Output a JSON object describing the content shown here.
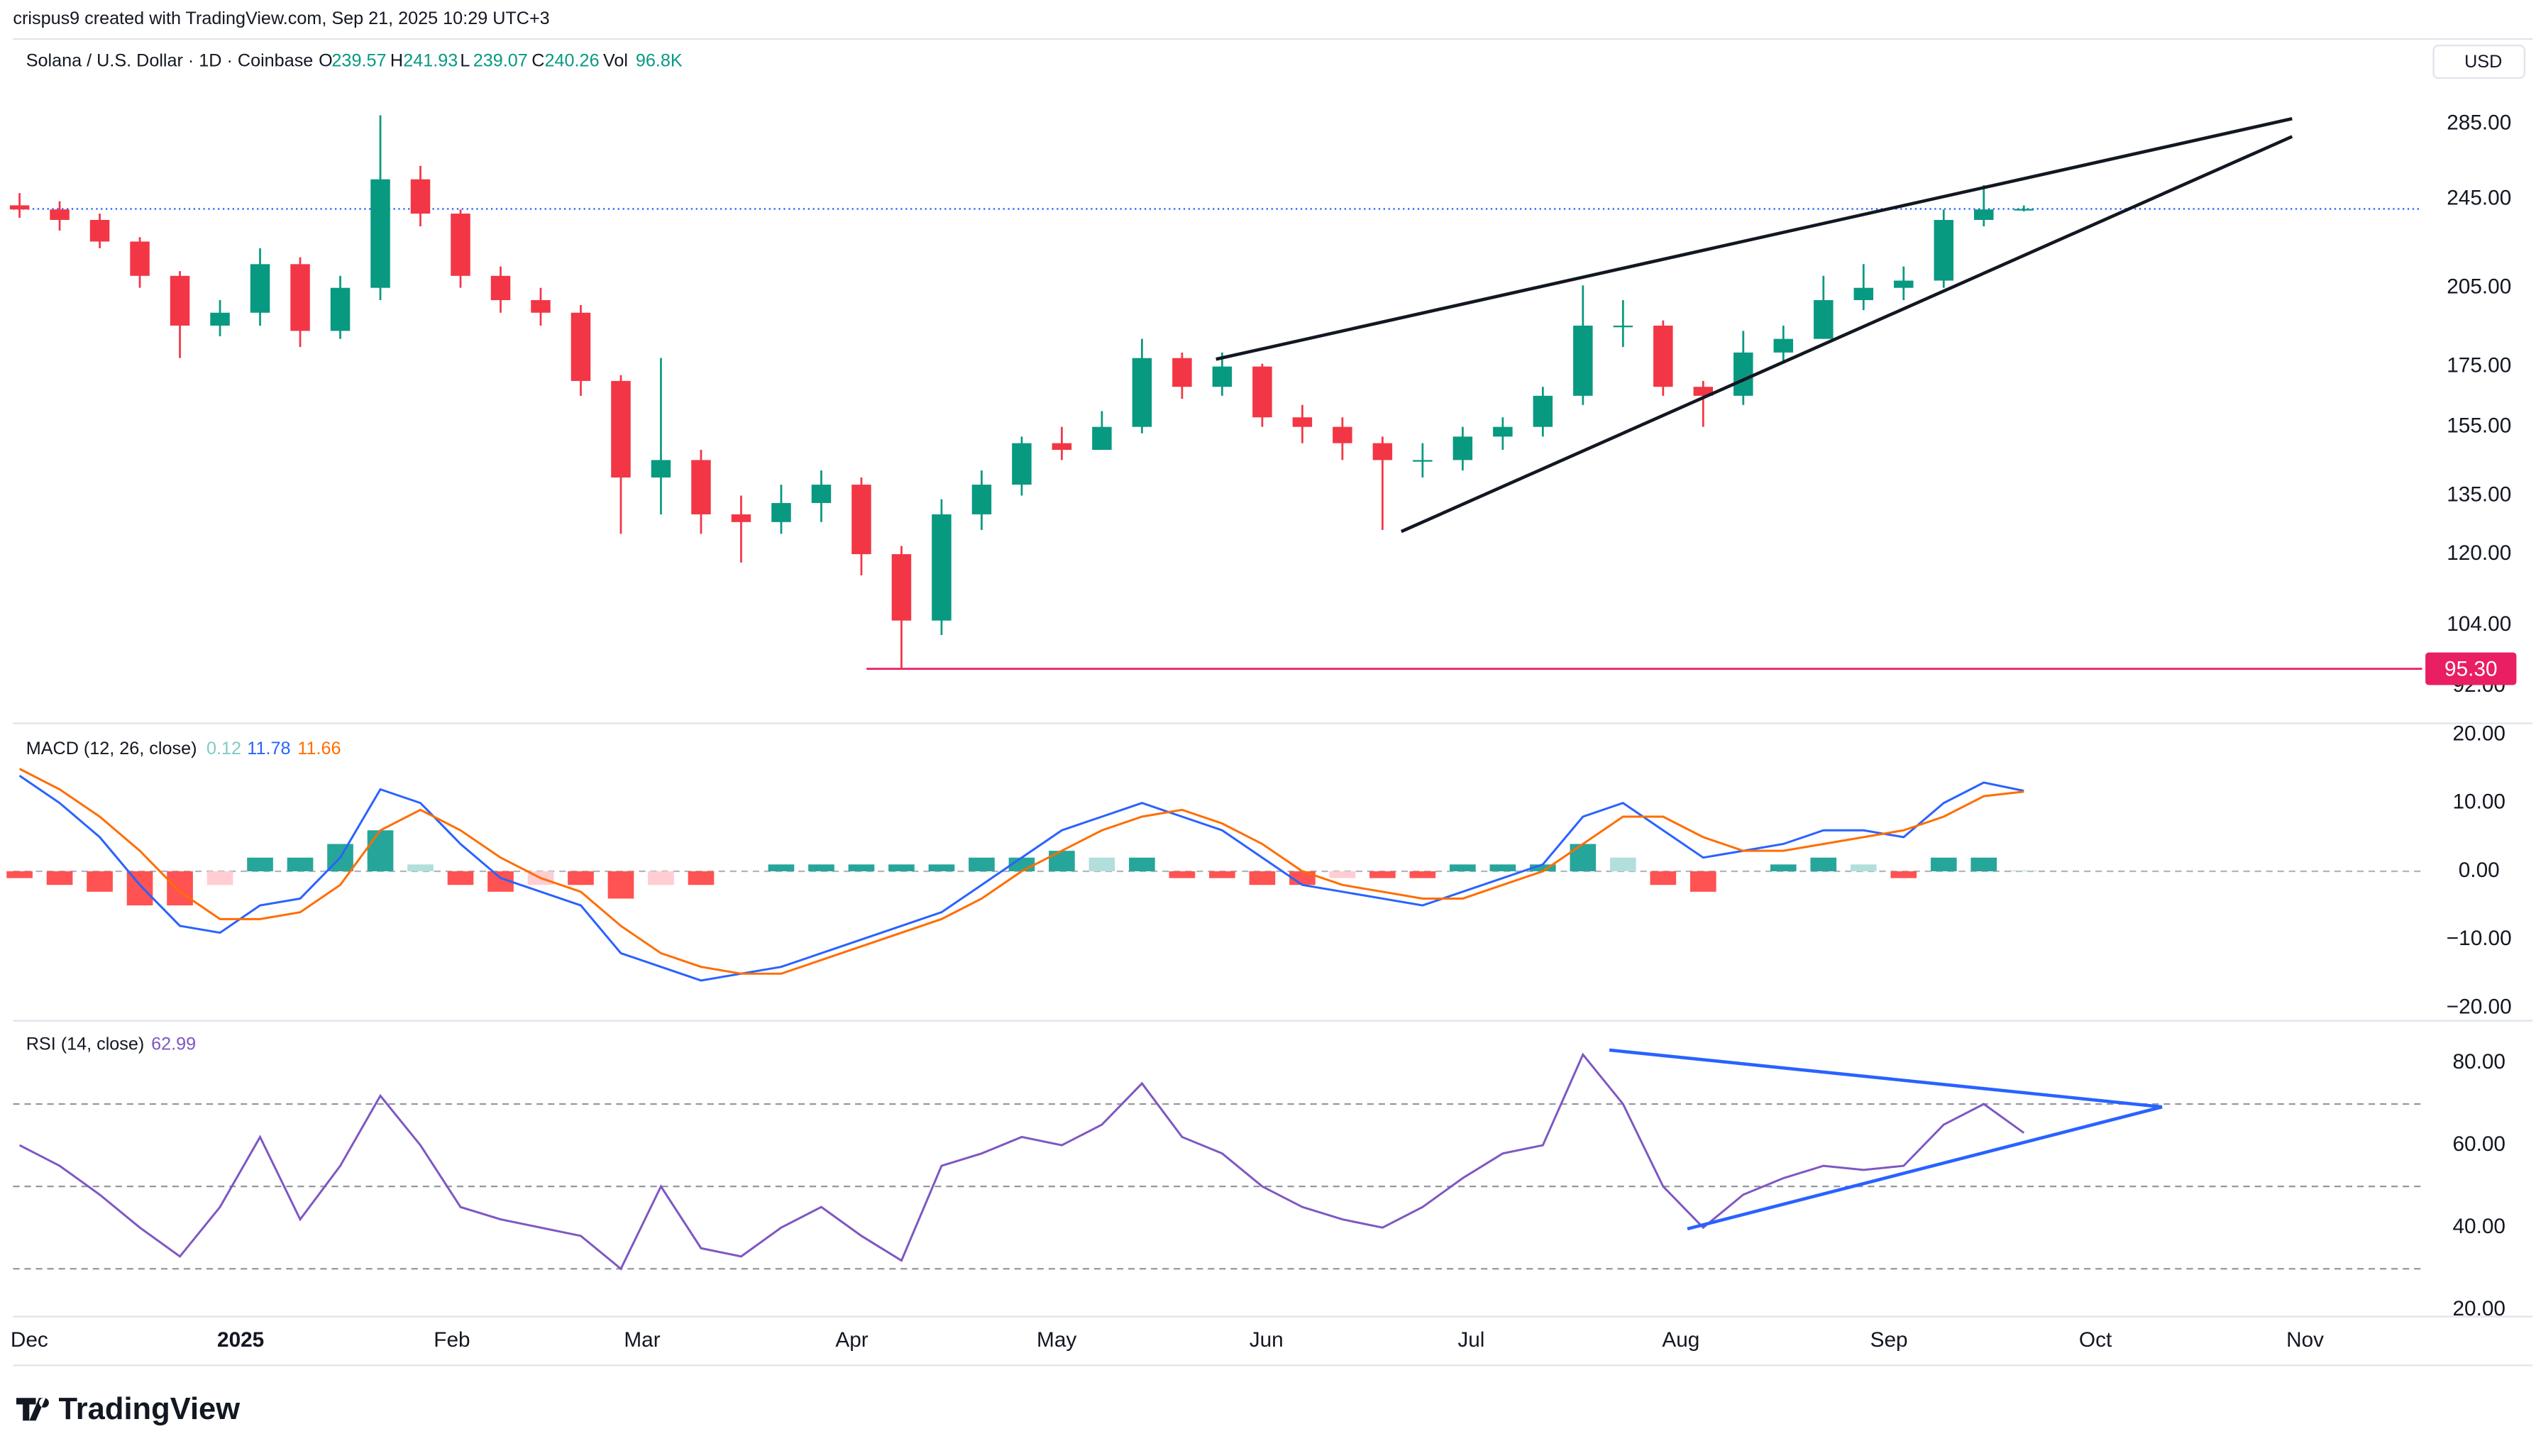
{
  "header": {
    "attribution": "crispus9 created with TradingView.com, Sep 21, 2025 10:29 UTC+3",
    "currency": "USD",
    "branding": "TradingView"
  },
  "chart_data": [
    {
      "type": "candlestick",
      "title": "Solana / U.S. Dollar · 1D · Coinbase",
      "ohlc_labels": [
        "O",
        "H",
        "L",
        "C",
        "Vol"
      ],
      "volume_label": "96.8K",
      "xticks": [
        "Dec",
        "2025",
        "Feb",
        "Mar",
        "Apr",
        "May",
        "Jun",
        "Jul",
        "Aug",
        "Sep",
        "Oct",
        "Nov"
      ],
      "open": [
        242,
        240,
        235,
        225,
        210,
        190,
        195,
        215,
        188,
        205,
        255,
        238,
        210,
        200,
        195,
        170,
        140,
        145,
        130,
        128,
        133,
        138,
        120,
        105,
        130,
        138,
        150,
        148,
        155,
        178,
        168,
        175,
        158,
        155,
        150,
        145,
        145,
        152,
        155,
        165,
        190,
        190,
        168,
        165,
        180,
        185,
        200,
        205,
        208,
        235,
        239.57
      ],
      "high": [
        248,
        244,
        238,
        227,
        212,
        200,
        222,
        218,
        210,
        290,
        262,
        240,
        214,
        205,
        198,
        172,
        178,
        148,
        135,
        138,
        142,
        140,
        122,
        134,
        142,
        152,
        155,
        160,
        185,
        180,
        180,
        176,
        162,
        158,
        152,
        150,
        155,
        158,
        168,
        206,
        200,
        192,
        170,
        188,
        190,
        210,
        215,
        214,
        240,
        252,
        241.93
      ],
      "low": [
        236,
        230,
        222,
        205,
        178,
        186,
        190,
        182,
        185,
        200,
        232,
        205,
        195,
        190,
        165,
        125,
        130,
        125,
        118,
        125,
        128,
        115,
        95.3,
        102,
        126,
        135,
        145,
        148,
        153,
        164,
        165,
        155,
        150,
        145,
        126,
        140,
        142,
        148,
        152,
        162,
        182,
        165,
        155,
        162,
        176,
        185,
        196,
        200,
        205,
        232,
        239.07
      ],
      "close": [
        240,
        235,
        225,
        210,
        190,
        195,
        215,
        188,
        205,
        255,
        238,
        210,
        200,
        195,
        170,
        140,
        145,
        130,
        128,
        133,
        138,
        120,
        105,
        130,
        138,
        150,
        148,
        155,
        178,
        168,
        175,
        158,
        155,
        150,
        145,
        145,
        152,
        155,
        165,
        190,
        190,
        168,
        165,
        180,
        185,
        200,
        205,
        208,
        235,
        240,
        240.26
      ],
      "colors": {
        "up": "#089981",
        "down": "#f23645",
        "last_price": "#2962ff"
      },
      "log_scale": true,
      "ylim": [
        85.4,
        337
      ],
      "yticks": [
        {
          "value": 285,
          "label": "285.00"
        },
        {
          "value": 245,
          "label": "245.00"
        },
        {
          "value": 205,
          "label": "205.00"
        },
        {
          "value": 175,
          "label": "175.00"
        },
        {
          "value": 155,
          "label": "155.00"
        },
        {
          "value": 135,
          "label": "135.00"
        },
        {
          "value": 120,
          "label": "120.00"
        },
        {
          "value": 104,
          "label": "104.00"
        },
        {
          "value": 92,
          "label": "92.00"
        }
      ],
      "horizontal_line": {
        "value": 95.3,
        "label": "95.30",
        "color": "#e91e63"
      }
    },
    {
      "type": "macd",
      "title": "MACD (12, 26, close)",
      "series": [
        {
          "name": "MACD",
          "color": "#2962ff",
          "values": [
            14,
            10,
            5,
            -2,
            -8,
            -9,
            -5,
            -4,
            2,
            12,
            10,
            4,
            -1,
            -3,
            -5,
            -12,
            -14,
            -16,
            -15,
            -14,
            -12,
            -10,
            -8,
            -6,
            -2,
            2,
            6,
            8,
            10,
            8,
            6,
            2,
            -2,
            -3,
            -4,
            -5,
            -3,
            -1,
            1,
            8,
            10,
            6,
            2,
            3,
            4,
            6,
            6,
            5,
            10,
            13,
            11.78
          ]
        },
        {
          "name": "Signal",
          "color": "#ff6d00",
          "values": [
            15,
            12,
            8,
            3,
            -3,
            -7,
            -7,
            -6,
            -2,
            6,
            9,
            6,
            2,
            -1,
            -3,
            -8,
            -12,
            -14,
            -15,
            -15,
            -13,
            -11,
            -9,
            -7,
            -4,
            0,
            3,
            6,
            8,
            9,
            7,
            4,
            0,
            -2,
            -3,
            -4,
            -4,
            -2,
            0,
            4,
            8,
            8,
            5,
            3,
            3,
            4,
            5,
            6,
            8,
            11,
            11.66
          ]
        },
        {
          "name": "Histogram",
          "color": "#80cbc4",
          "values": [
            -1,
            -2,
            -3,
            -5,
            -5,
            -2,
            2,
            2,
            4,
            6,
            1,
            -2,
            -3,
            -2,
            -2,
            -4,
            -2,
            -2,
            0,
            1,
            1,
            1,
            1,
            1,
            2,
            2,
            3,
            2,
            2,
            -1,
            -1,
            -2,
            -2,
            -1,
            -1,
            -1,
            1,
            1,
            1,
            4,
            2,
            -2,
            -3,
            0,
            1,
            2,
            1,
            -1,
            2,
            2,
            0.12
          ]
        }
      ],
      "histogram_colors": {
        "up_rising": "#26a69a",
        "up_falling": "#b2dfdb",
        "down_falling": "#ff5252",
        "down_rising": "#ffcdd2"
      },
      "ylim": [
        -21.9,
        21.67
      ],
      "yticks": [
        {
          "value": 20,
          "label": "20.00"
        },
        {
          "value": 10,
          "label": "10.00"
        },
        {
          "value": 0,
          "label": "0.00"
        },
        {
          "value": -10,
          "label": "−10.00"
        },
        {
          "value": -20,
          "label": "−20.00"
        }
      ]
    },
    {
      "type": "rsi",
      "title": "RSI (14, close)",
      "series": [
        {
          "name": "RSI",
          "color": "#7e57c2",
          "values": [
            60,
            55,
            48,
            40,
            33,
            45,
            62,
            42,
            55,
            72,
            60,
            45,
            42,
            40,
            38,
            30,
            50,
            35,
            33,
            40,
            45,
            38,
            32,
            55,
            58,
            62,
            60,
            65,
            75,
            62,
            58,
            50,
            45,
            42,
            40,
            45,
            52,
            58,
            60,
            82,
            70,
            50,
            40,
            48,
            52,
            55,
            54,
            55,
            65,
            70,
            62.99
          ]
        }
      ],
      "levels": [
        70,
        50,
        30
      ],
      "ylim": [
        18.4,
        90.2
      ],
      "yticks": [
        {
          "value": 80,
          "label": "80.00"
        },
        {
          "value": 60,
          "label": "60.00"
        },
        {
          "value": 40,
          "label": "40.00"
        },
        {
          "value": 20,
          "label": "20.00"
        }
      ]
    }
  ]
}
